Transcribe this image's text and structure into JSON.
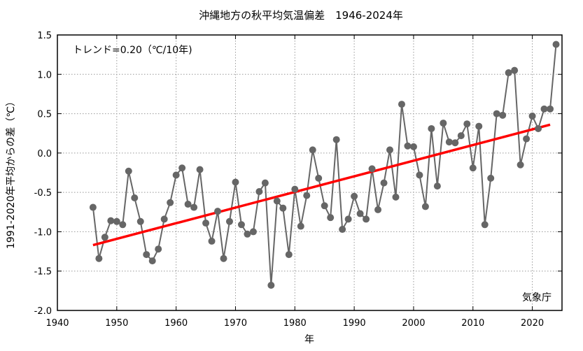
{
  "chart_data": {
    "type": "line",
    "title": "沖縄地方の秋平均気温偏差　1946-2024年",
    "xlabel": "年",
    "ylabel": "1991-2020年平均からの差（℃）",
    "annotation": "トレンド=0.20（℃/10年)",
    "source": "気象庁",
    "xlim": [
      1940,
      2025
    ],
    "ylim": [
      -2.0,
      1.5
    ],
    "grid": true,
    "x_ticks": [
      1940,
      1950,
      1960,
      1970,
      1980,
      1990,
      2000,
      2010,
      2020
    ],
    "y_ticks": [
      -2.0,
      -1.5,
      -1.0,
      -0.5,
      0.0,
      0.5,
      1.0,
      1.5
    ],
    "y_tick_labels": [
      "-2.0",
      "-1.5",
      "-1.0",
      "-0.5",
      "0.0",
      "0.5",
      "1.0",
      "1.5"
    ],
    "series": [
      {
        "name": "偏差",
        "color": "#666666",
        "x": [
          1946,
          1947,
          1948,
          1949,
          1950,
          1951,
          1952,
          1953,
          1954,
          1955,
          1956,
          1957,
          1958,
          1959,
          1960,
          1961,
          1962,
          1963,
          1964,
          1965,
          1966,
          1967,
          1968,
          1969,
          1970,
          1971,
          1972,
          1973,
          1974,
          1975,
          1976,
          1977,
          1978,
          1979,
          1980,
          1981,
          1982,
          1983,
          1984,
          1985,
          1986,
          1987,
          1988,
          1989,
          1990,
          1991,
          1992,
          1993,
          1994,
          1995,
          1996,
          1997,
          1998,
          1999,
          2000,
          2001,
          2002,
          2003,
          2004,
          2005,
          2006,
          2007,
          2008,
          2009,
          2010,
          2011,
          2012,
          2013,
          2014,
          2015,
          2016,
          2017,
          2018,
          2019,
          2020,
          2021,
          2022,
          2023,
          2024
        ],
        "values": [
          -0.69,
          -1.34,
          -1.07,
          -0.86,
          -0.87,
          -0.91,
          -0.23,
          -0.57,
          -0.87,
          -1.29,
          -1.37,
          -1.22,
          -0.84,
          -0.63,
          -0.28,
          -0.19,
          -0.65,
          -0.69,
          -0.21,
          -0.89,
          -1.12,
          -0.74,
          -1.34,
          -0.87,
          -0.37,
          -0.91,
          -1.03,
          -1.0,
          -0.49,
          -0.38,
          -1.68,
          -0.61,
          -0.7,
          -1.29,
          -0.46,
          -0.93,
          -0.54,
          0.04,
          -0.32,
          -0.67,
          -0.82,
          0.17,
          -0.97,
          -0.84,
          -0.55,
          -0.77,
          -0.84,
          -0.2,
          -0.72,
          -0.38,
          0.04,
          -0.56,
          0.62,
          0.09,
          0.08,
          -0.28,
          -0.68,
          0.31,
          -0.42,
          0.38,
          0.14,
          0.13,
          0.22,
          0.37,
          -0.19,
          0.34,
          -0.91,
          -0.32,
          0.5,
          0.48,
          1.02,
          1.05,
          -0.15,
          0.18,
          0.47,
          0.31,
          0.56,
          0.56,
          1.38
        ]
      },
      {
        "name": "トレンド",
        "color": "#ff0000",
        "x": [
          1946,
          2023
        ],
        "values": [
          -1.17,
          0.36
        ]
      }
    ]
  }
}
